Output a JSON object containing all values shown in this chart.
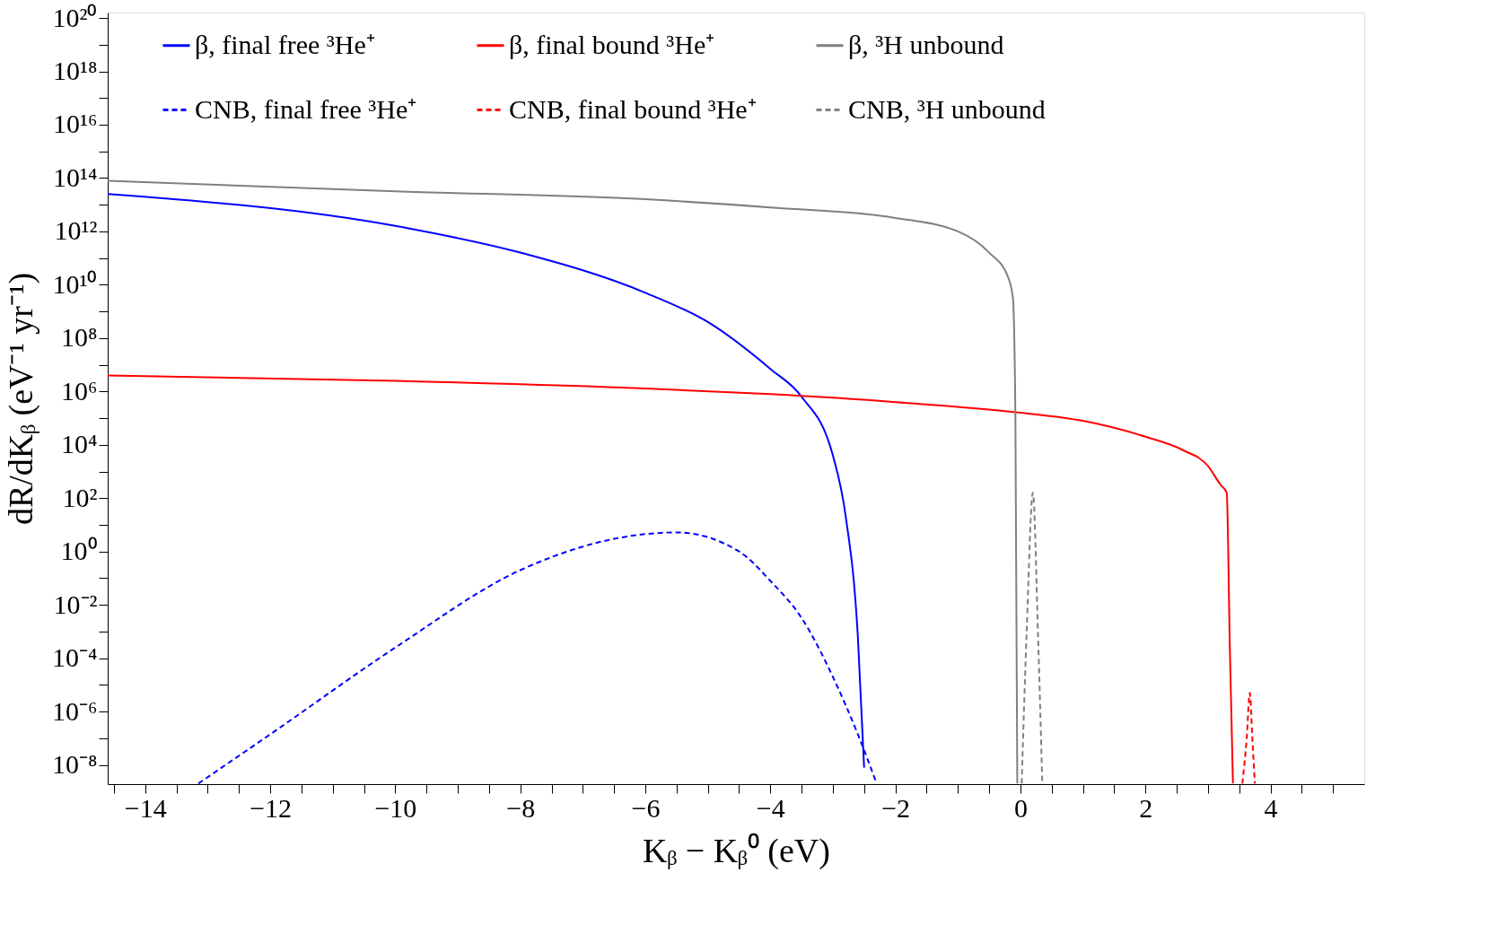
{
  "chart_data": {
    "type": "line",
    "xlabel": "Kᵦ − Kᵦ⁰ (eV)",
    "ylabel": "dR/dKᵦ (eV⁻¹ yr⁻¹)",
    "log": "y",
    "grid": false,
    "legend": "top",
    "marker": "none",
    "xlim": [
      -14.6,
      5.5
    ],
    "ylim": [
      1.9e-09,
      1.6e+20
    ],
    "xticks": [
      {
        "value": -14.5,
        "label": null
      },
      -14,
      {
        "value": -13.5,
        "label": null
      },
      {
        "value": -13,
        "label": null
      },
      {
        "value": -12.5,
        "label": null
      },
      -12,
      {
        "value": -11.5,
        "label": null
      },
      {
        "value": -11,
        "label": null
      },
      {
        "value": -10.5,
        "label": null
      },
      -10,
      {
        "value": -9.5,
        "label": null
      },
      {
        "value": -9,
        "label": null
      },
      {
        "value": -8.5,
        "label": null
      },
      -8,
      {
        "value": -7.5,
        "label": null
      },
      {
        "value": -7,
        "label": null
      },
      {
        "value": -6.5,
        "label": null
      },
      -6,
      {
        "value": -5.5,
        "label": null
      },
      {
        "value": -5,
        "label": null
      },
      {
        "value": -4.5,
        "label": null
      },
      -4,
      {
        "value": -3.5,
        "label": null
      },
      {
        "value": -3,
        "label": null
      },
      {
        "value": -2.5,
        "label": null
      },
      -2,
      {
        "value": -1.5,
        "label": null
      },
      {
        "value": -1,
        "label": null
      },
      {
        "value": -0.5,
        "label": null
      },
      0,
      {
        "value": 0.5,
        "label": null
      },
      {
        "value": 1,
        "label": null
      },
      {
        "value": 1.5,
        "label": null
      },
      2,
      {
        "value": 2.5,
        "label": null
      },
      {
        "value": 3,
        "label": null
      },
      {
        "value": 3.5,
        "label": null
      },
      4,
      {
        "value": 4.5,
        "label": null
      },
      {
        "value": 5,
        "label": null
      }
    ],
    "yticks": [
      {
        "value": 1e-08,
        "label": "10⁻⁸"
      },
      {
        "value": 1e-07,
        "label": null
      },
      {
        "value": 1e-06,
        "label": "10⁻⁶"
      },
      {
        "value": 1e-05,
        "label": null
      },
      {
        "value": 0.0001,
        "label": "10⁻⁴"
      },
      {
        "value": 0.001,
        "label": null
      },
      {
        "value": 0.01,
        "label": "10⁻²"
      },
      {
        "value": 0.1,
        "label": null
      },
      {
        "value": 1,
        "label": "10⁰"
      },
      {
        "value": 10,
        "label": null
      },
      {
        "value": 100,
        "label": "10²"
      },
      {
        "value": 1000.0,
        "label": null
      },
      {
        "value": 10000.0,
        "label": "10⁴"
      },
      {
        "value": 100000.0,
        "label": null
      },
      {
        "value": 1000000.0,
        "label": "10⁶"
      },
      {
        "value": 10000000.0,
        "label": null
      },
      {
        "value": 100000000.0,
        "label": "10⁸"
      },
      {
        "value": 1000000000.0,
        "label": null
      },
      {
        "value": 10000000000.0,
        "label": "10¹⁰"
      },
      {
        "value": 100000000000.0,
        "label": null
      },
      {
        "value": 1000000000000.0,
        "label": "10¹²"
      },
      {
        "value": 10000000000000.0,
        "label": null
      },
      {
        "value": 100000000000000.0,
        "label": "10¹⁴"
      },
      {
        "value": 1000000000000000.0,
        "label": null
      },
      {
        "value": 1e+16,
        "label": "10¹⁶"
      },
      {
        "value": 1e+17,
        "label": null
      },
      {
        "value": 1e+18,
        "label": "10¹⁸"
      },
      {
        "value": 1e+19,
        "label": null
      },
      {
        "value": 1e+20,
        "label": "10²⁰"
      }
    ],
    "series": [
      {
        "name": "β, final free ³He⁺",
        "color": "#0000ff",
        "line_style": "solid",
        "x": [
          -14.6,
          -10,
          -8,
          -6,
          -5,
          -4,
          -3.5,
          -3,
          -2.8,
          -2.6,
          -2.5
        ],
        "values": [
          25000000000000.0,
          1600000000000.0,
          160000000000.0,
          5000000000.0,
          400000000.0,
          7000000.0,
          630000.0,
          4000.0,
          25,
          0.00063,
          7.9e-09
        ]
      },
      {
        "name": "β, final bound ³He⁺",
        "color": "#ff0000",
        "line_style": "solid",
        "x": [
          -14.6,
          -10,
          -6,
          -4,
          -2,
          0,
          1,
          2,
          2.6,
          3,
          3.2,
          3.3,
          3.35,
          3.4
        ],
        "values": [
          4000000.0,
          2500000.0,
          1300000.0,
          790000.0,
          400000.0,
          160000.0,
          79000.0,
          20000.0,
          6300.0,
          1600.0,
          320,
          160,
          0.00025,
          2e-09
        ]
      },
      {
        "name": "β, ³H unbound",
        "color": "#808080",
        "line_style": "solid",
        "x": [
          -14.6,
          -10,
          -6,
          -4,
          -2,
          -1,
          -0.5,
          -0.2,
          -0.12,
          -0.08,
          -0.05
        ],
        "values": [
          79000000000000.0,
          32000000000000.0,
          16000000000000.0,
          7900000000000.0,
          3200000000000.0,
          1000000000000.0,
          160000000000.0,
          20000000000.0,
          3200000000.0,
          100000.0,
          2e-09
        ]
      },
      {
        "name": "CNB, final free ³He⁺",
        "color": "#0000ff",
        "line_style": "dashed",
        "x": [
          -13.15,
          -12,
          -10,
          -8,
          -6,
          -5.5,
          -4.5,
          -4,
          -3.5,
          -3,
          -2.6,
          -2.3
        ],
        "values": [
          2e-09,
          1.4e-07,
          0.00025,
          0.2,
          4.5,
          5.2,
          1,
          0.079,
          0.0032,
          2e-05,
          1.4e-07,
          2e-09
        ]
      },
      {
        "name": "CNB, final bound ³He⁺",
        "color": "#ff0000",
        "line_style": "dashed",
        "x": [
          3.55,
          3.62,
          3.67,
          3.71,
          3.75
        ],
        "values": [
          2e-09,
          1e-07,
          5e-06,
          1e-07,
          2e-09
        ]
      },
      {
        "name": "CNB, ³H unbound",
        "color": "#808080",
        "line_style": "dashed",
        "x": [
          0.02,
          0.1,
          0.2,
          0.28,
          0.35
        ],
        "values": [
          2e-09,
          0.001,
          160,
          0.001,
          2e-09
        ]
      }
    ]
  }
}
